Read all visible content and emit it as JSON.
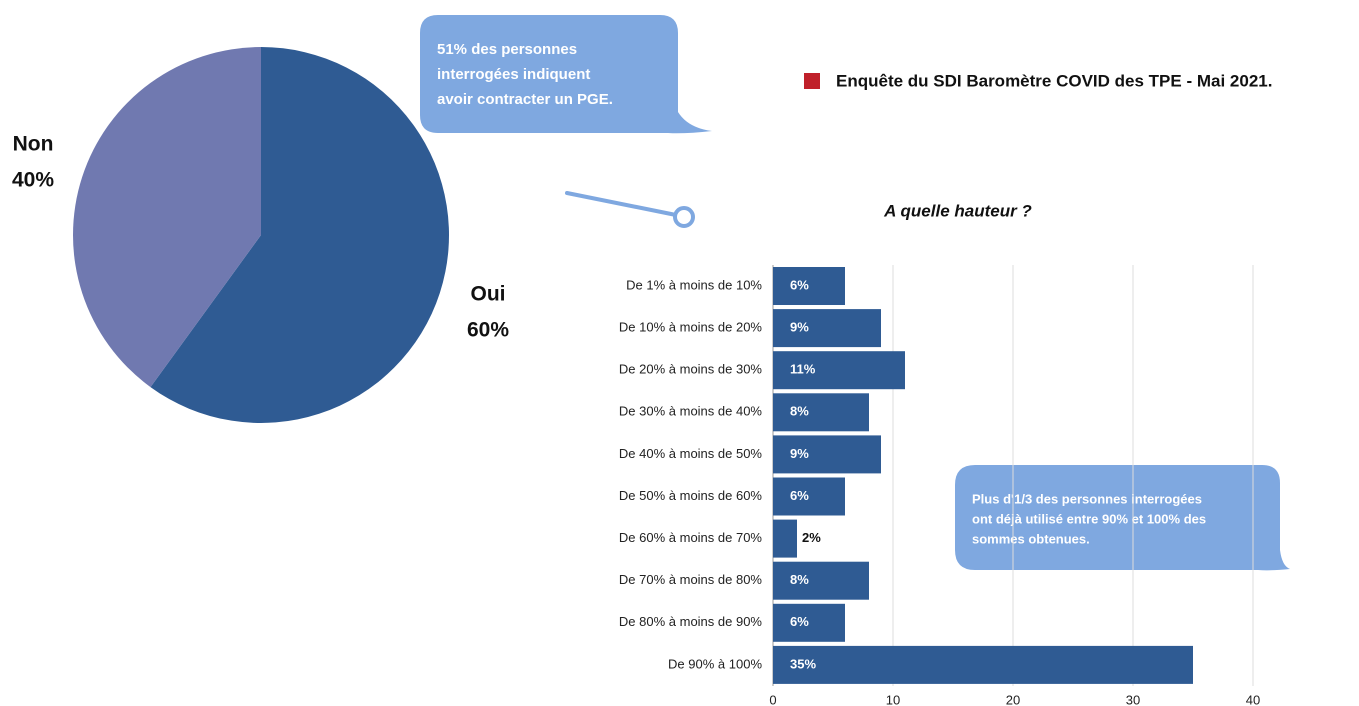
{
  "chart_data": [
    {
      "type": "pie",
      "categories": [
        "Oui",
        "Non"
      ],
      "values": [
        60,
        40
      ],
      "value_labels": [
        "60%",
        "40%"
      ],
      "colors": [
        "#2f5b93",
        "#7079b0"
      ]
    },
    {
      "type": "barh",
      "title": "A quelle hauteur ?",
      "categories": [
        "De 1% à moins de 10%",
        "De 10% à moins de 20%",
        "De 20% à moins de 30%",
        "De 30% à moins de 40%",
        "De 40% à moins de 50%",
        "De 50% à moins de 60%",
        "De 60% à moins de 70%",
        "De 70% à moins de 80%",
        "De 80% à moins de 90%",
        "De 90% à 100%"
      ],
      "values": [
        6,
        9,
        11,
        8,
        9,
        6,
        2,
        8,
        6,
        35
      ],
      "value_labels": [
        "6%",
        "9%",
        "11%",
        "8%",
        "9%",
        "6%",
        "2%",
        "8%",
        "6%",
        "35%"
      ],
      "color": "#2f5b93",
      "xlim": [
        0,
        40
      ],
      "xticks": [
        0,
        10,
        20,
        30,
        40
      ],
      "grid": true
    }
  ],
  "legend": {
    "label": "Enquête du SDI Baromètre COVID des TPE - Mai 2021.",
    "color": "#c0202a"
  },
  "annotations": [
    {
      "lines": [
        "51% des personnes",
        "interrogées indiquent",
        "avoir contracter un PGE."
      ]
    },
    {
      "lines": [
        "Plus d'1/3 des personnes interrogées",
        "ont déjà utilisé entre 90% et 100% des",
        "sommes obtenues."
      ]
    }
  ]
}
